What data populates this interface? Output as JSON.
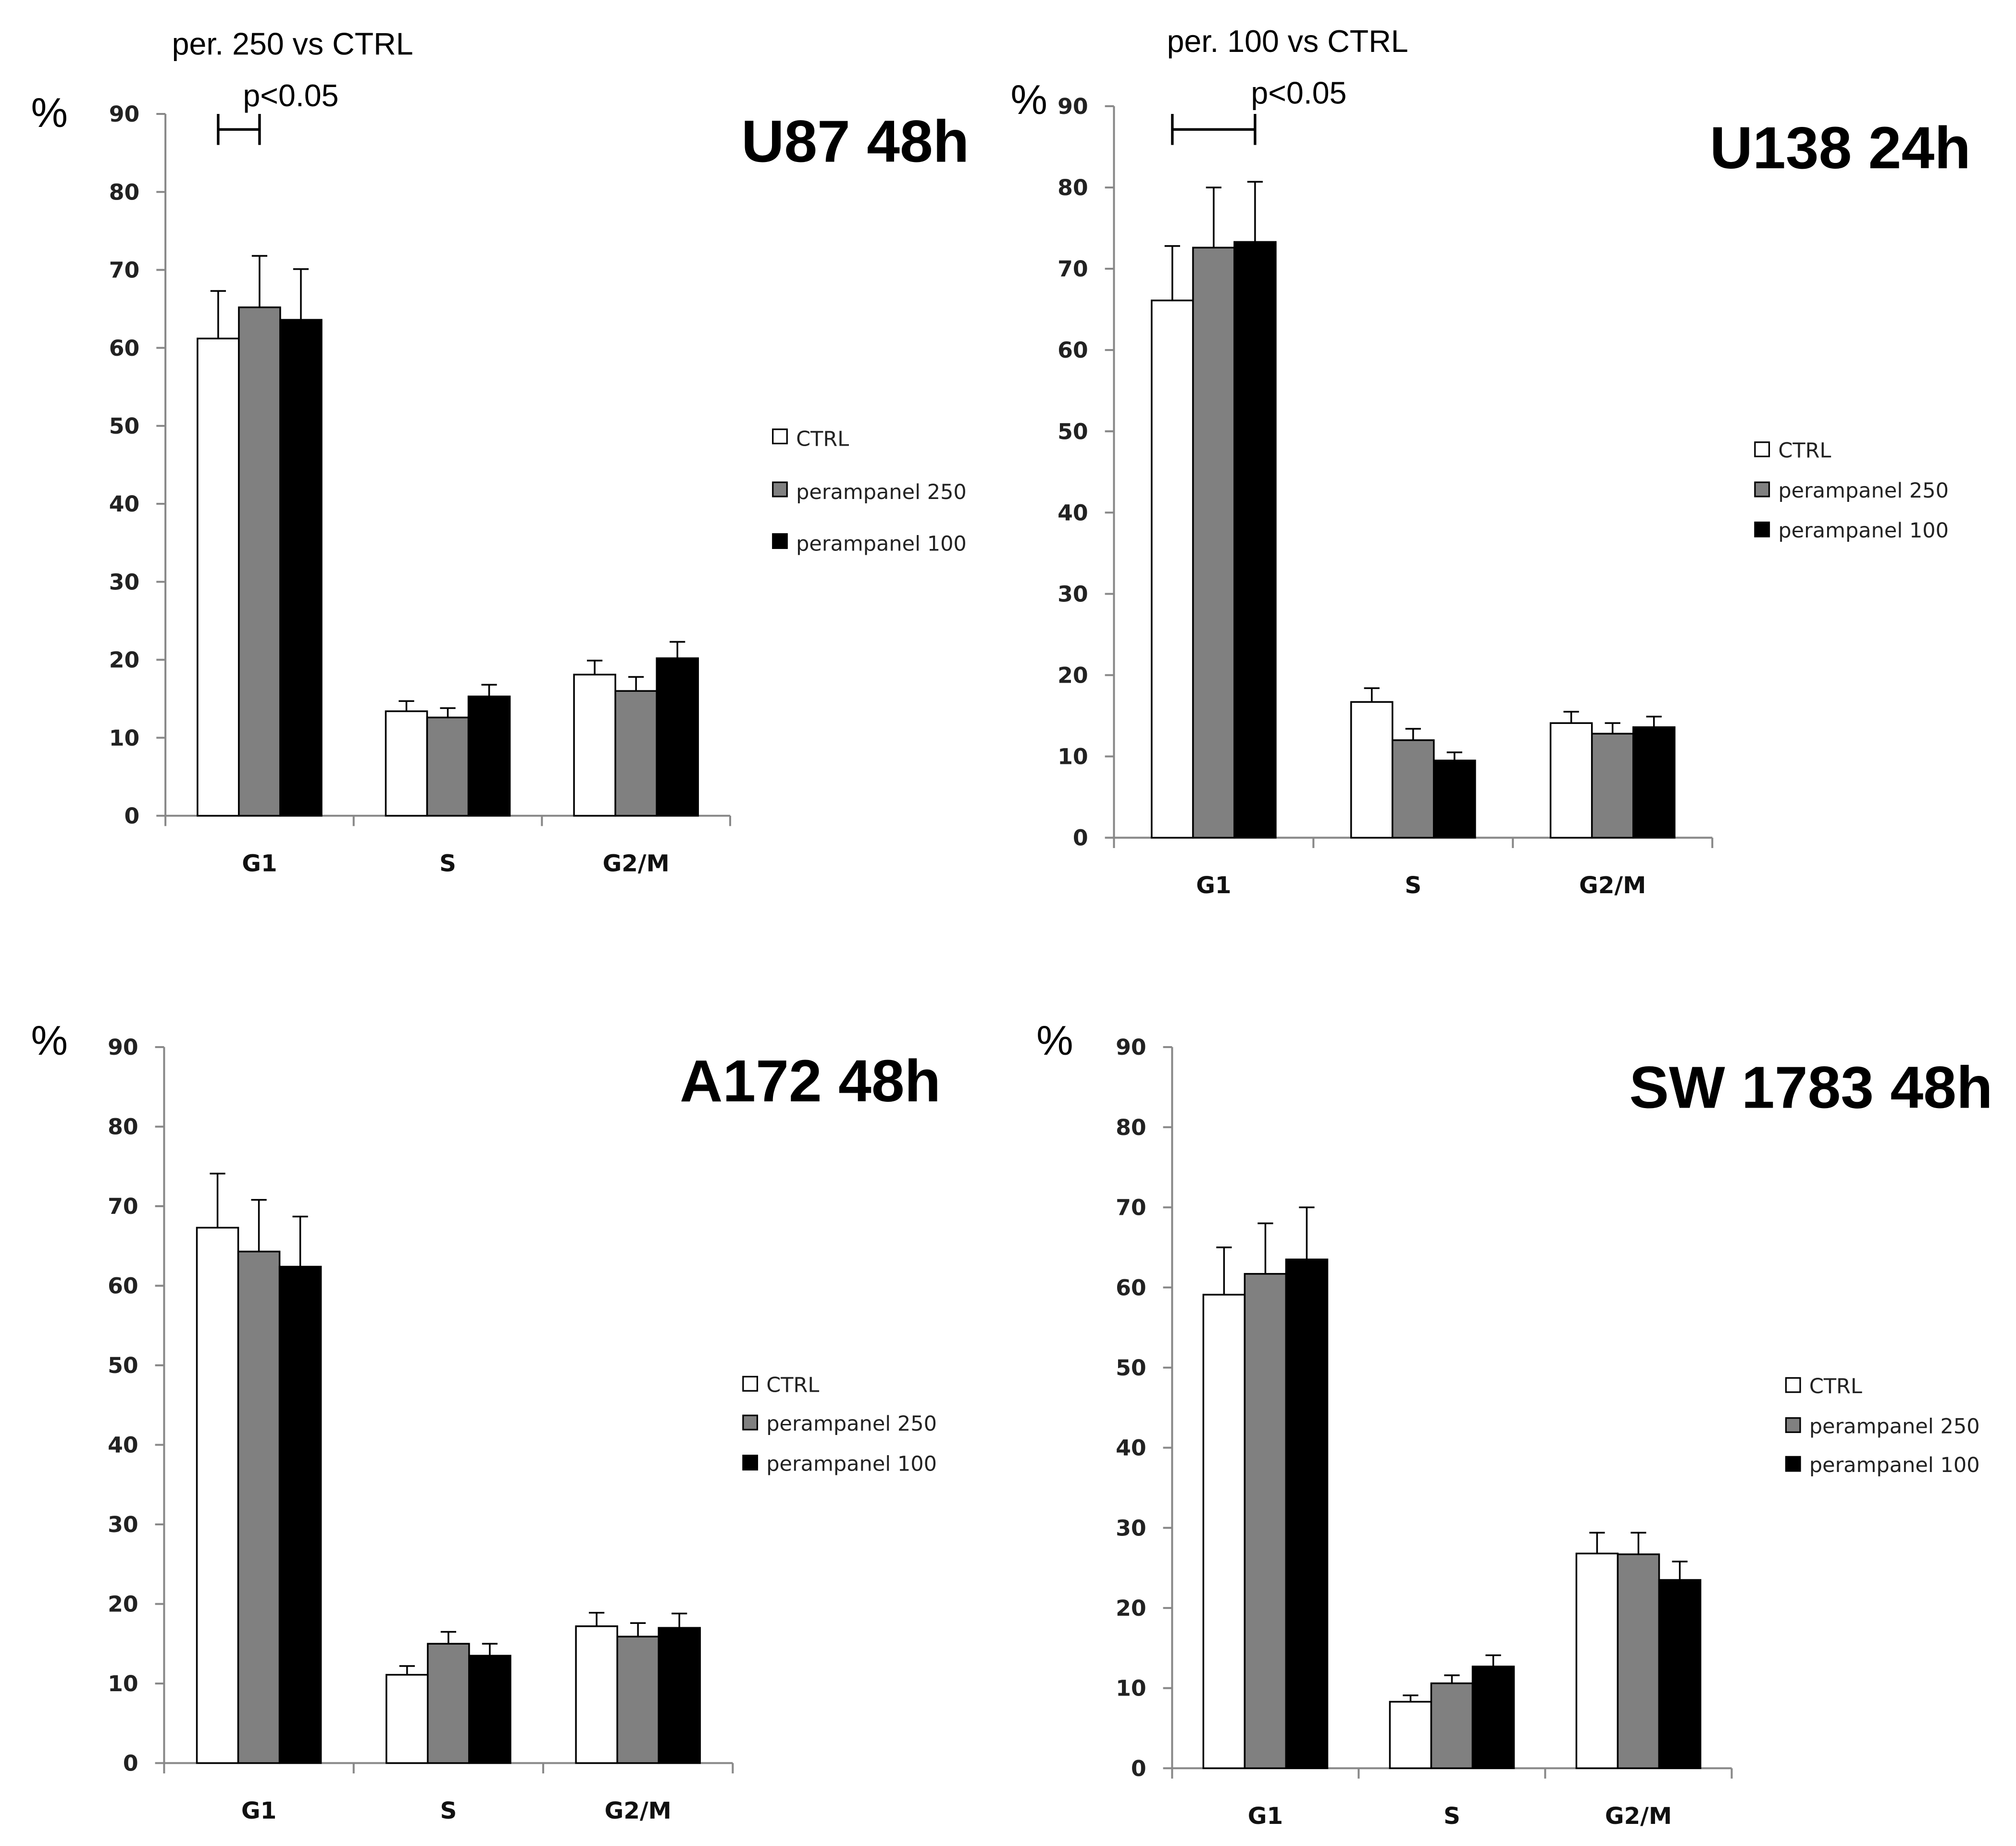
{
  "chart_data": [
    {
      "type": "bar",
      "title": "U87 48h",
      "ylabel": "%",
      "ylim": [
        0,
        90
      ],
      "yticks": [
        "0",
        "10",
        "20",
        "30",
        "40",
        "50",
        "60",
        "70",
        "80",
        "90"
      ],
      "categories": [
        "G1",
        "S",
        "G2/M"
      ],
      "legend_placement": "right",
      "annotation": {
        "comparison": "per. 250 vs CTRL",
        "significance": "p<0.05",
        "between": [
          "CTRL",
          "perampanel 250"
        ],
        "category": "G1"
      },
      "series": [
        {
          "name": "CTRL",
          "color": "#ffffff",
          "values": [
            61.2,
            13.4,
            18.1
          ],
          "errors": [
            6.1,
            1.3,
            1.8
          ]
        },
        {
          "name": "perampanel 250",
          "color": "#808080",
          "values": [
            65.2,
            12.6,
            16.0
          ],
          "errors": [
            6.6,
            1.2,
            1.8
          ]
        },
        {
          "name": "perampanel 100",
          "color": "#000000",
          "values": [
            63.6,
            15.3,
            20.2
          ],
          "errors": [
            6.5,
            1.5,
            2.1
          ]
        }
      ]
    },
    {
      "type": "bar",
      "title": "U138 24h",
      "ylabel": "%",
      "ylim": [
        0,
        90
      ],
      "yticks": [
        "0",
        "10",
        "20",
        "30",
        "40",
        "50",
        "60",
        "70",
        "80",
        "90"
      ],
      "categories": [
        "G1",
        "S",
        "G2/M"
      ],
      "legend_placement": "right",
      "annotation": {
        "comparison": "per. 100 vs CTRL",
        "significance": "p<0.05",
        "between": [
          "CTRL",
          "perampanel 100"
        ],
        "category": "G1"
      },
      "series": [
        {
          "name": "CTRL",
          "color": "#ffffff",
          "values": [
            66.1,
            16.7,
            14.1
          ],
          "errors": [
            6.7,
            1.7,
            1.4
          ]
        },
        {
          "name": "perampanel 250",
          "color": "#808080",
          "values": [
            72.6,
            12.0,
            12.8
          ],
          "errors": [
            7.4,
            1.4,
            1.3
          ]
        },
        {
          "name": "perampanel 100",
          "color": "#000000",
          "values": [
            73.3,
            9.5,
            13.6
          ],
          "errors": [
            7.4,
            1.0,
            1.3
          ]
        }
      ]
    },
    {
      "type": "bar",
      "title": "A172 48h",
      "ylabel": "%",
      "ylim": [
        0,
        90
      ],
      "yticks": [
        "0",
        "10",
        "20",
        "30",
        "40",
        "50",
        "60",
        "70",
        "80",
        "90"
      ],
      "categories": [
        "G1",
        "S",
        "G2/M"
      ],
      "legend_placement": "right",
      "series": [
        {
          "name": "CTRL",
          "color": "#ffffff",
          "values": [
            67.3,
            11.1,
            17.2
          ],
          "errors": [
            6.8,
            1.1,
            1.7
          ]
        },
        {
          "name": "perampanel 250",
          "color": "#808080",
          "values": [
            64.3,
            15.0,
            15.9
          ],
          "errors": [
            6.5,
            1.5,
            1.7
          ]
        },
        {
          "name": "perampanel 100",
          "color": "#000000",
          "values": [
            62.4,
            13.5,
            17.0
          ],
          "errors": [
            6.3,
            1.5,
            1.8
          ]
        }
      ]
    },
    {
      "type": "bar",
      "title": "SW 1783 48h",
      "ylabel": "%",
      "ylim": [
        0,
        90
      ],
      "yticks": [
        "0",
        "10",
        "20",
        "30",
        "40",
        "50",
        "60",
        "70",
        "80",
        "90"
      ],
      "categories": [
        "G1",
        "S",
        "G2/M"
      ],
      "legend_placement": "right",
      "series": [
        {
          "name": "CTRL",
          "color": "#ffffff",
          "values": [
            59.1,
            8.3,
            26.8
          ],
          "errors": [
            5.9,
            0.8,
            2.6
          ]
        },
        {
          "name": "perampanel 250",
          "color": "#808080",
          "values": [
            61.7,
            10.6,
            26.7
          ],
          "errors": [
            6.3,
            1.0,
            2.7
          ]
        },
        {
          "name": "perampanel 100",
          "color": "#000000",
          "values": [
            63.5,
            12.7,
            23.5
          ],
          "errors": [
            6.5,
            1.4,
            2.3
          ]
        }
      ]
    }
  ]
}
